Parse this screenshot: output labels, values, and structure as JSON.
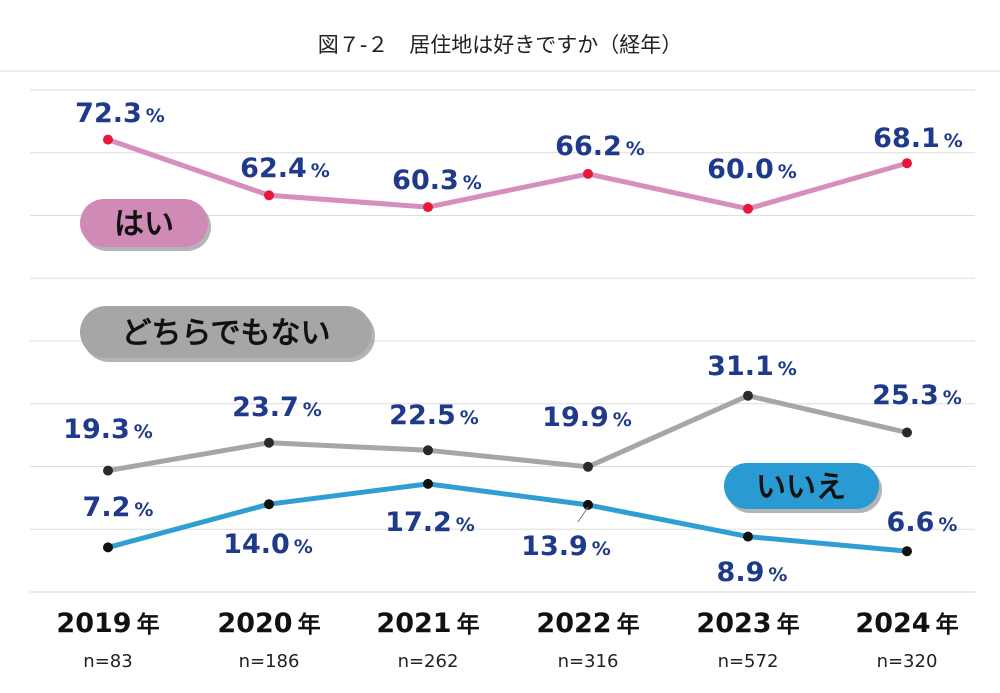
{
  "chart_data": {
    "type": "line",
    "title": "図７-２　居住地は好きですか（経年）",
    "categories": [
      "2019",
      "2020",
      "2021",
      "2022",
      "2023",
      "2024"
    ],
    "year_suffix": "年",
    "sample_sizes": [
      "n=83",
      "n=186",
      "n=262",
      "n=316",
      "n=572",
      "n=320"
    ],
    "percent_symbol": "%",
    "series": [
      {
        "name": "はい",
        "values": [
          72.3,
          62.4,
          60.3,
          66.2,
          60.0,
          68.1
        ],
        "labels": [
          "72.3",
          "62.4",
          "60.3",
          "66.2",
          "60.0",
          "68.1"
        ],
        "color": "#d68ebd",
        "marker_color": "#e8183a",
        "badge_color": "#cf8ab6"
      },
      {
        "name": "どちらでもない",
        "values": [
          19.3,
          23.7,
          22.5,
          19.9,
          31.1,
          25.3
        ],
        "labels": [
          "19.3",
          "23.7",
          "22.5",
          "19.9",
          "31.1",
          "25.3"
        ],
        "color": "#a6a6a6",
        "marker_color": "#2a2a2a",
        "badge_color": "#a6a6a6"
      },
      {
        "name": "いいえ",
        "values": [
          7.2,
          14.0,
          17.2,
          13.9,
          8.9,
          6.6
        ],
        "labels": [
          "7.2",
          "14.0",
          "17.2",
          "13.9",
          "8.9",
          "6.6"
        ],
        "color": "#2f9fd3",
        "marker_color": "#111111",
        "badge_color": "#2a9ad2"
      }
    ],
    "legend_position": "inline",
    "grid": true
  }
}
